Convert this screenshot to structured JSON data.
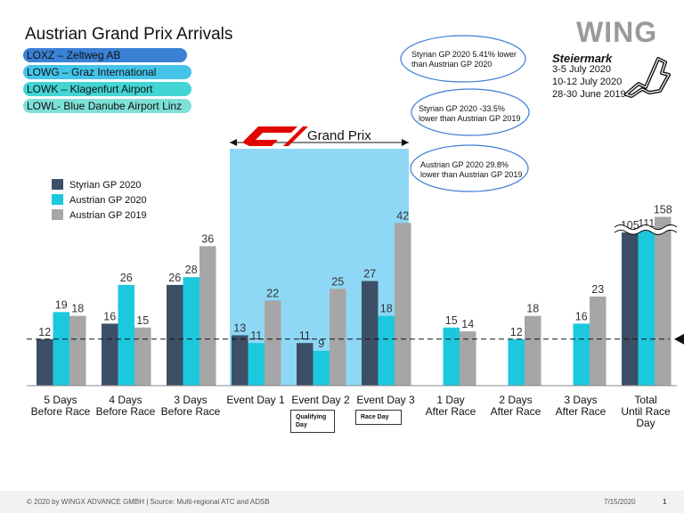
{
  "title": "Austrian Grand Prix Arrivals",
  "airports": [
    {
      "label": "LOXZ – Zeltweg AB",
      "color": "#3b82d6"
    },
    {
      "label": "LOWG – Graz International",
      "color": "#43c4e8"
    },
    {
      "label": "LOWK – Klagenfurt Airport",
      "color": "#45d4d4"
    },
    {
      "label": "LOWL- Blue Danube Airport Linz",
      "color": "#7fe0d8"
    }
  ],
  "logo_text": "WING",
  "event": {
    "title": "Steiermark",
    "dates": [
      "3-5 July 2020",
      "10-12 July 2020",
      "28-30 June 2019"
    ]
  },
  "callouts": [
    "Styrian GP 2020 5.41% lower than Austrian GP 2020",
    "Styrian GP 2020 -33.5% lower than Austrian GP 2019",
    "Austrian GP 2020 29.8% lower than Austrian GP 2019"
  ],
  "grand_prix_label": "Grand Prix",
  "day_boxes": {
    "qualifying": "Qualifying Day",
    "race": "Race Day"
  },
  "footer": {
    "left": "© 2020 by WINGX ADVANCE GMBH  | Source: Multi-regional ATC and ADSB",
    "date": "7/15/2020",
    "page": "1"
  },
  "colors": {
    "styrian": "#3d4f66",
    "austrian2020": "#1cc8de",
    "austrian2019": "#a6a6a6",
    "gp_band": "#8fd8f5"
  },
  "chart_data": {
    "type": "bar",
    "categories": [
      "5 Days Before Race",
      "4 Days Before Race",
      "3 Days Before Race",
      "Event Day 1",
      "Event Day 2",
      "Event Day 3",
      "1 Day After Race",
      "2 Days After Race",
      "3 Days After Race",
      "Total Until Race Day"
    ],
    "series": [
      {
        "name": "Styrian GP 2020",
        "values": [
          12,
          16,
          26,
          13,
          11,
          27,
          null,
          null,
          null,
          105
        ]
      },
      {
        "name": "Austrian GP 2020",
        "values": [
          19,
          26,
          28,
          11,
          9,
          18,
          15,
          12,
          16,
          111
        ]
      },
      {
        "name": "Austrian GP 2019",
        "values": [
          18,
          15,
          36,
          22,
          25,
          42,
          14,
          18,
          23,
          158
        ]
      }
    ],
    "legend": "top-left",
    "axis_break": "Total Until Race Day",
    "reference_line": 12
  }
}
